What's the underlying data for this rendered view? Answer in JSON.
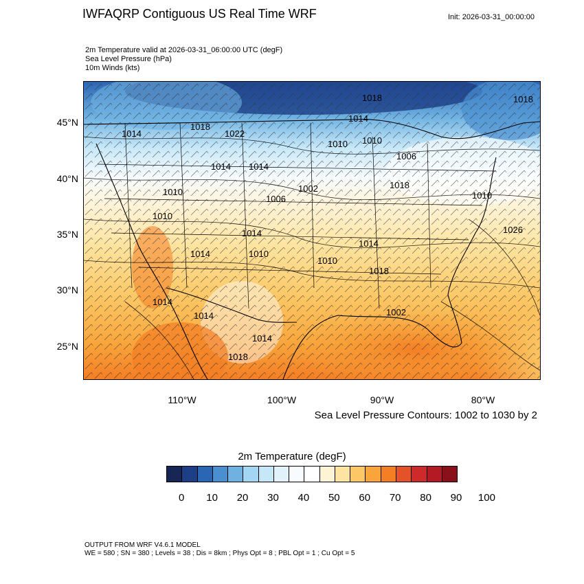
{
  "header": {
    "title": "IWFAQRP Contiguous US Real Time WRF",
    "init": "Init: 2026-03-31_00:00:00",
    "subtitle_lines": [
      "2m Temperature valid at 2026-03-31_06:00:00 UTC   (degF)",
      "Sea Level Pressure   (hPa)",
      "10m Winds   (kts)"
    ]
  },
  "map": {
    "lat_labels": [
      "45°N",
      "40°N",
      "35°N",
      "30°N",
      "25°N"
    ],
    "lon_labels": [
      "110°W",
      "100°W",
      "90°W",
      "80°W"
    ],
    "contour_note": "Sea Level Pressure Contours: 1002 to 1030 by 2",
    "pressure_labels": [
      "1018",
      "1014",
      "1014",
      "1018",
      "1022",
      "1010",
      "1010",
      "1006",
      "1014",
      "1014",
      "1002",
      "1010",
      "1006",
      "1018",
      "1010",
      "1010",
      "1014",
      "1026",
      "1014",
      "1010",
      "1014",
      "1010",
      "1018",
      "1014",
      "1014",
      "1014",
      "1018",
      "1002",
      "1018"
    ]
  },
  "colorbar": {
    "title": "2m Temperature  (degF)",
    "colors": [
      "#182656",
      "#1d3f87",
      "#2b66b5",
      "#4a8fd0",
      "#6fb2e2",
      "#a3d6f2",
      "#c6e7f8",
      "#e2f2fb",
      "#f7fbfd",
      "#ffffff",
      "#fff3d6",
      "#fee4a0",
      "#fcc866",
      "#f9a53b",
      "#f47e24",
      "#e4522a",
      "#cf2a2a",
      "#b31a23",
      "#8a1119"
    ],
    "ticks": [
      "0",
      "10",
      "20",
      "30",
      "40",
      "50",
      "60",
      "70",
      "80",
      "90",
      "100"
    ]
  },
  "footer": {
    "line1": "OUTPUT FROM WRF V4.6.1 MODEL",
    "line2": "WE = 580 ; SN = 380 ; Levels = 38 ; Dis = 8km ; Phys Opt = 8 ; PBL Opt = 1 ; Cu Opt = 5"
  }
}
